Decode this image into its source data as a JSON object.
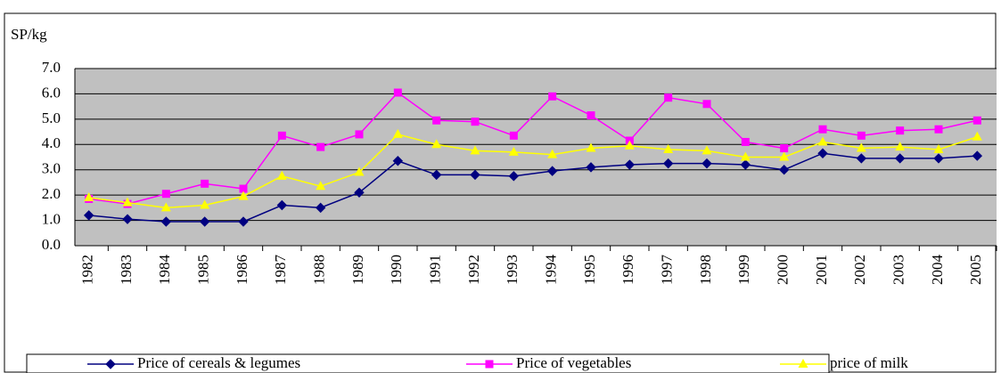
{
  "chart_data": {
    "type": "line",
    "y_label": "SP/kg",
    "categories": [
      "1982",
      "1983",
      "1984",
      "1985",
      "1986",
      "1987",
      "1988",
      "1989",
      "1990",
      "1991",
      "1992",
      "1993",
      "1994",
      "1995",
      "1996",
      "1997",
      "1998",
      "1999",
      "2000",
      "2001",
      "2002",
      "2003",
      "2004",
      "2005"
    ],
    "series": [
      {
        "name": "Price of cereals & legumes",
        "color": "#000080",
        "marker": "diamond",
        "values": [
          1.2,
          1.05,
          0.95,
          0.95,
          0.95,
          1.6,
          1.5,
          2.1,
          3.35,
          2.8,
          2.8,
          2.75,
          2.95,
          3.1,
          3.2,
          3.25,
          3.25,
          3.2,
          3.0,
          3.65,
          3.45,
          3.45,
          3.45,
          3.55
        ]
      },
      {
        "name": "Price of vegetables",
        "color": "#ff00ff",
        "marker": "square",
        "values": [
          1.85,
          1.65,
          2.05,
          2.45,
          2.25,
          4.35,
          3.9,
          4.4,
          6.05,
          4.95,
          4.9,
          4.35,
          5.9,
          5.15,
          4.15,
          5.85,
          5.6,
          4.1,
          3.85,
          4.6,
          4.35,
          4.55,
          4.6,
          4.95
        ]
      },
      {
        "name": "price of milk",
        "color": "#ffff00",
        "marker": "triangle",
        "values": [
          1.9,
          1.7,
          1.5,
          1.6,
          1.95,
          2.75,
          2.35,
          2.9,
          4.4,
          4.0,
          3.75,
          3.7,
          3.6,
          3.85,
          3.95,
          3.8,
          3.75,
          3.5,
          3.5,
          4.1,
          3.85,
          3.9,
          3.8,
          4.3
        ]
      }
    ],
    "ylim": [
      0,
      7
    ],
    "yticks": [
      {
        "value": 0,
        "label": "0.0"
      },
      {
        "value": 1,
        "label": "1.0"
      },
      {
        "value": 2,
        "label": "2.0"
      },
      {
        "value": 3,
        "label": "3.0"
      },
      {
        "value": 4,
        "label": "4.0"
      },
      {
        "value": 5,
        "label": "5.0"
      },
      {
        "value": 6,
        "label": "6.0"
      },
      {
        "value": 7,
        "label": "7.0"
      }
    ],
    "grid": true,
    "plot_background": "#c0c0c0",
    "legend": "bottom"
  }
}
